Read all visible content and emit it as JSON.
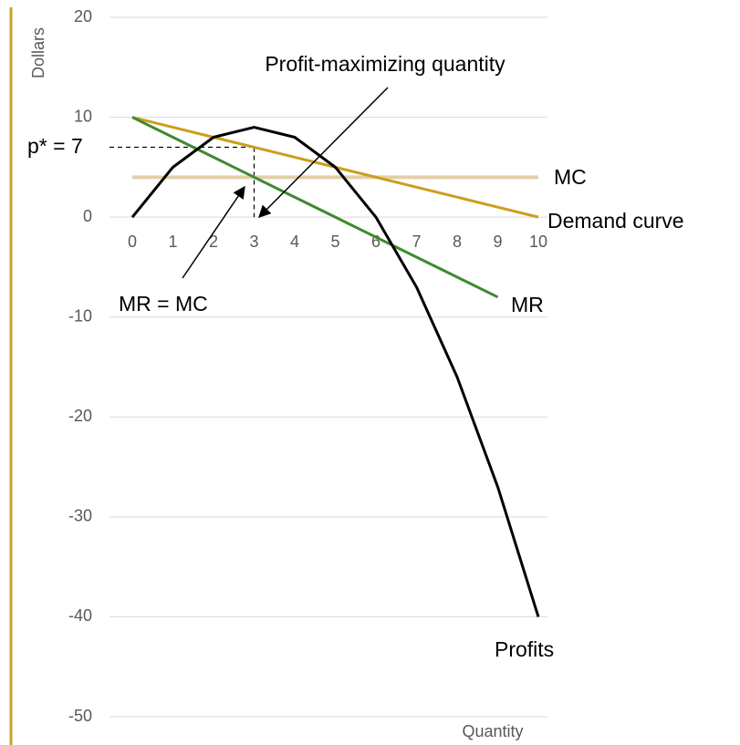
{
  "chart_data": {
    "type": "line",
    "y_label": "Dollars",
    "x_label": "Quantity",
    "x": [
      0,
      1,
      2,
      3,
      4,
      5,
      6,
      7,
      8,
      9,
      10
    ],
    "xlim": [
      0,
      10
    ],
    "xticks": [
      0,
      1,
      2,
      3,
      4,
      5,
      6,
      7,
      8,
      9,
      10
    ],
    "ylim": [
      -50,
      20
    ],
    "yticks": [
      -50,
      -40,
      -30,
      -20,
      -10,
      0,
      10,
      20
    ],
    "grid": true,
    "series": [
      {
        "name": "MC",
        "color": "#e3cfa8",
        "values": [
          4,
          4,
          4,
          4,
          4,
          4,
          4,
          4,
          4,
          4,
          4
        ]
      },
      {
        "name": "Demand curve",
        "color": "#cc9e1c",
        "values": [
          10,
          9,
          8,
          7,
          6,
          5,
          4,
          3,
          2,
          1,
          0
        ]
      },
      {
        "name": "MR",
        "color": "#3d8b2f",
        "values": [
          10,
          8,
          6,
          4,
          2,
          0,
          -2,
          -4,
          -6,
          -8,
          null
        ]
      },
      {
        "name": "Profits",
        "color": "#000000",
        "values": [
          0,
          5,
          8,
          9,
          8,
          5,
          0,
          -7,
          -16,
          -27,
          -40
        ]
      }
    ],
    "annotations": [
      "Profit-maximizing quantity",
      "MR = MC",
      "p* = 7"
    ]
  }
}
